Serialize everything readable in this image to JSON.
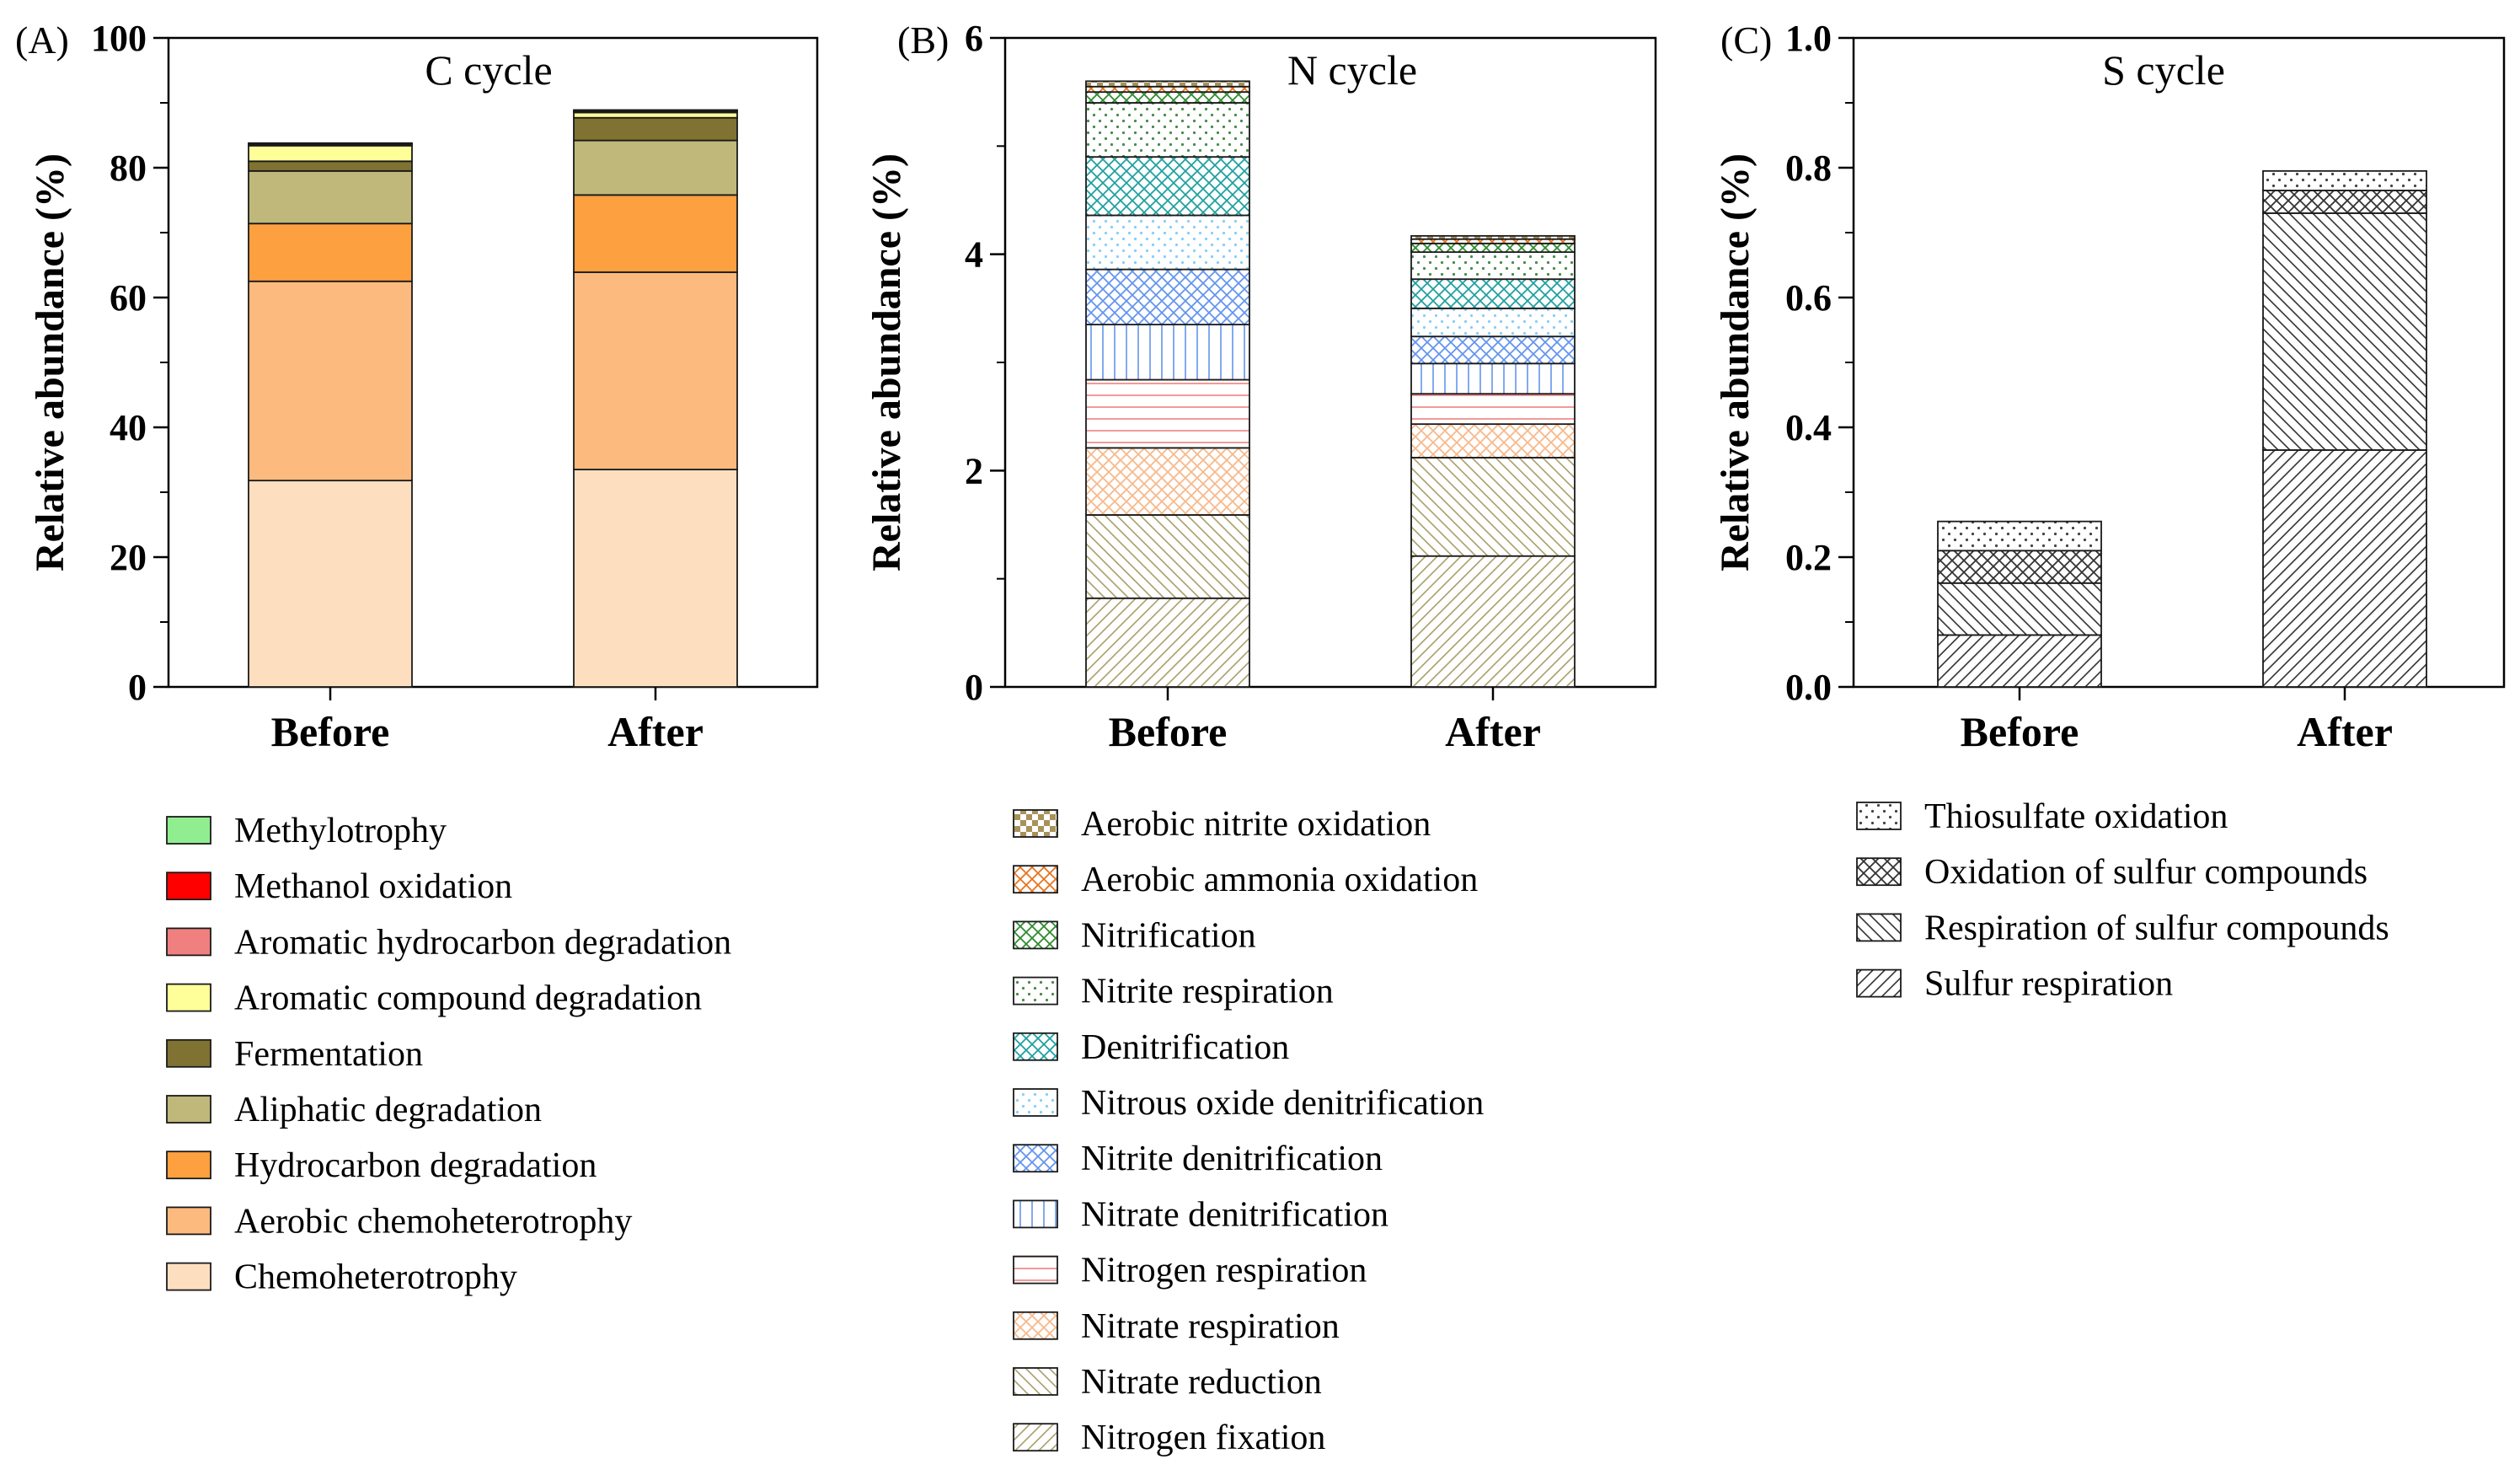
{
  "chart_data": [
    {
      "panel": "(A)",
      "type": "bar",
      "stacked": true,
      "title": "C cycle",
      "ylabel": "Relative abundance (%)",
      "ylim": [
        0,
        100
      ],
      "yticks": [
        "0",
        "20",
        "40",
        "60",
        "80",
        "100"
      ],
      "categories": [
        "Before",
        "After"
      ],
      "series": [
        {
          "name": "Chemoheterotrophy",
          "values": [
            31.8,
            33.5
          ],
          "color": "#FDDFC0",
          "pattern": "solid"
        },
        {
          "name": "Aerobic chemoheterotrophy",
          "values": [
            30.7,
            30.4
          ],
          "color": "#FDBA7F",
          "pattern": "solid"
        },
        {
          "name": "Hydrocarbon degradation",
          "values": [
            8.9,
            11.9
          ],
          "color": "#FDA040",
          "pattern": "solid"
        },
        {
          "name": "Aliphatic degradation",
          "values": [
            8.1,
            8.4
          ],
          "color": "#BFB87A",
          "pattern": "solid"
        },
        {
          "name": "Fermentation",
          "values": [
            1.5,
            3.5
          ],
          "color": "#7F7232",
          "pattern": "solid"
        },
        {
          "name": "Aromatic compound degradation",
          "values": [
            2.4,
            0.8
          ],
          "color": "#FFFF99",
          "pattern": "solid"
        },
        {
          "name": "Aromatic hydrocarbon degradation",
          "values": [
            0.2,
            0.2
          ],
          "color": "#F08080",
          "pattern": "solid"
        },
        {
          "name": "Methanol oxidation",
          "values": [
            0.1,
            0.1
          ],
          "color": "#FF0000",
          "pattern": "solid"
        },
        {
          "name": "Methylotrophy",
          "values": [
            0.1,
            0.1
          ],
          "color": "#90EE90",
          "pattern": "solid"
        }
      ],
      "legend_order": [
        "Methylotrophy",
        "Methanol oxidation",
        "Aromatic hydrocarbon degradation",
        "Aromatic compound degradation",
        "Fermentation",
        "Aliphatic degradation",
        "Hydrocarbon degradation",
        "Aerobic chemoheterotrophy",
        "Chemoheterotrophy"
      ]
    },
    {
      "panel": "(B)",
      "type": "bar",
      "stacked": true,
      "title": "N cycle",
      "ylabel": "Relative abundance (%)",
      "ylim": [
        0,
        6
      ],
      "yticks": [
        "0",
        "2",
        "4",
        "6"
      ],
      "categories": [
        "Before",
        "After"
      ],
      "series": [
        {
          "name": "Nitrogen fixation",
          "values": [
            0.82,
            1.21
          ],
          "color": "#A89F6A",
          "pattern": "diag-fwd"
        },
        {
          "name": "Nitrate reduction",
          "values": [
            0.77,
            0.91
          ],
          "color": "#A89F6A",
          "pattern": "diag-back"
        },
        {
          "name": "Nitrate respiration",
          "values": [
            0.62,
            0.31
          ],
          "color": "#F7B98B",
          "pattern": "cross"
        },
        {
          "name": "Nitrogen respiration",
          "values": [
            0.63,
            0.28
          ],
          "color": "#F08080",
          "pattern": "hlines"
        },
        {
          "name": "Nitrate denitrification",
          "values": [
            0.51,
            0.28
          ],
          "color": "#6495ED",
          "pattern": "vlines"
        },
        {
          "name": "Nitrite denitrification",
          "values": [
            0.51,
            0.25
          ],
          "color": "#6495ED",
          "pattern": "cross"
        },
        {
          "name": "Nitrous oxide denitrification",
          "values": [
            0.5,
            0.26
          ],
          "color": "#87CEFA",
          "pattern": "dots"
        },
        {
          "name": "Denitrification",
          "values": [
            0.54,
            0.27
          ],
          "color": "#20A0A0",
          "pattern": "cross"
        },
        {
          "name": "Nitrite respiration",
          "values": [
            0.5,
            0.25
          ],
          "color": "#4A8A4A",
          "pattern": "dots"
        },
        {
          "name": "Nitrification",
          "values": [
            0.1,
            0.08
          ],
          "color": "#2E8B2E",
          "pattern": "cross"
        },
        {
          "name": "Aerobic ammonia oxidation",
          "values": [
            0.05,
            0.04
          ],
          "color": "#E8731C",
          "pattern": "cross"
        },
        {
          "name": "Aerobic nitrite oxidation",
          "values": [
            0.05,
            0.03
          ],
          "color": "#A8925A",
          "pattern": "check"
        }
      ],
      "legend_order": [
        "Aerobic nitrite oxidation",
        "Aerobic ammonia oxidation",
        "Nitrification",
        "Nitrite respiration",
        "Denitrification",
        "Nitrous oxide denitrification",
        "Nitrite denitrification",
        "Nitrate denitrification",
        "Nitrogen respiration",
        "Nitrate respiration",
        "Nitrate reduction",
        "Nitrogen fixation"
      ]
    },
    {
      "panel": "(C)",
      "type": "bar",
      "stacked": true,
      "title": "S cycle",
      "ylabel": "Relative abundance (%)",
      "ylim": [
        0,
        1.0
      ],
      "yticks": [
        "0.0",
        "0.2",
        "0.4",
        "0.6",
        "0.8",
        "1.0"
      ],
      "categories": [
        "Before",
        "After"
      ],
      "series": [
        {
          "name": "Sulfur respiration",
          "values": [
            0.08,
            0.365
          ],
          "color": "#333333",
          "pattern": "diag-fwd"
        },
        {
          "name": "Respiration of sulfur compounds",
          "values": [
            0.08,
            0.365
          ],
          "color": "#333333",
          "pattern": "diag-back"
        },
        {
          "name": "Oxidation of sulfur compounds",
          "values": [
            0.05,
            0.035
          ],
          "color": "#333333",
          "pattern": "cross"
        },
        {
          "name": "Thiosulfate oxidation",
          "values": [
            0.045,
            0.03
          ],
          "color": "#444444",
          "pattern": "dots"
        }
      ],
      "legend_order": [
        "Thiosulfate oxidation",
        "Oxidation of sulfur compounds",
        "Respiration of sulfur compounds",
        "Sulfur respiration"
      ]
    }
  ]
}
